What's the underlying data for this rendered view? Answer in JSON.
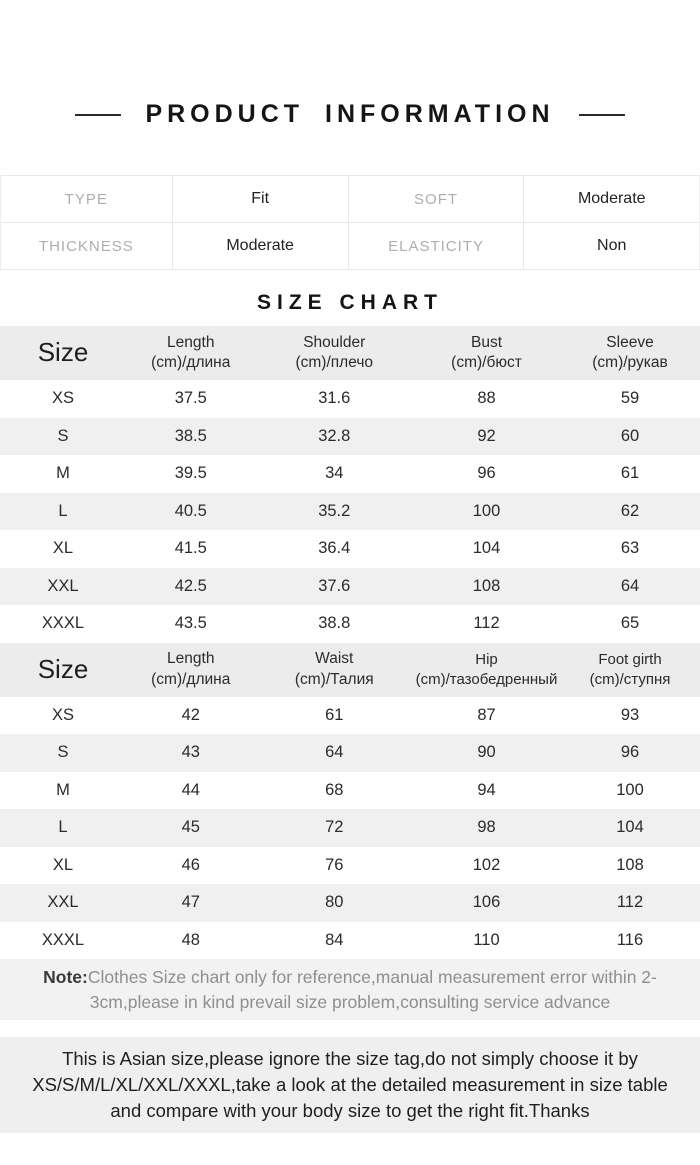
{
  "title": "PRODUCT INFORMATION",
  "info_table": {
    "rows": [
      {
        "label1": "TYPE",
        "value1": "Fit",
        "label2": "SOFT",
        "value2": "Moderate"
      },
      {
        "label1": "THICKNESS",
        "value1": "Moderate",
        "label2": "ELASTICITY",
        "value2": "Non"
      }
    ]
  },
  "size_chart": {
    "heading": "SIZE CHART",
    "tables": [
      {
        "headers": [
          {
            "top": "Size",
            "bottom": ""
          },
          {
            "top": "Length",
            "bottom": "(cm)/длина"
          },
          {
            "top": "Shoulder",
            "bottom": "(cm)/плечо"
          },
          {
            "top": "Bust",
            "bottom": "(cm)/бюст"
          },
          {
            "top": "Sleeve",
            "bottom": "(cm)/рукав"
          }
        ],
        "rows": [
          [
            "XS",
            "37.5",
            "31.6",
            "88",
            "59"
          ],
          [
            "S",
            "38.5",
            "32.8",
            "92",
            "60"
          ],
          [
            "M",
            "39.5",
            "34",
            "96",
            "61"
          ],
          [
            "L",
            "40.5",
            "35.2",
            "100",
            "62"
          ],
          [
            "XL",
            "41.5",
            "36.4",
            "104",
            "63"
          ],
          [
            "XXL",
            "42.5",
            "37.6",
            "108",
            "64"
          ],
          [
            "XXXL",
            "43.5",
            "38.8",
            "112",
            "65"
          ]
        ]
      },
      {
        "headers": [
          {
            "top": "Size",
            "bottom": ""
          },
          {
            "top": "Length",
            "bottom": "(cm)/длина"
          },
          {
            "top": "Waist",
            "bottom": "(cm)/Талия"
          },
          {
            "top": "Hip",
            "bottom": "(cm)/тазобедренный"
          },
          {
            "top": "Foot girth",
            "bottom": "(cm)/ступня"
          }
        ],
        "rows": [
          [
            "XS",
            "42",
            "61",
            "87",
            "93"
          ],
          [
            "S",
            "43",
            "64",
            "90",
            "96"
          ],
          [
            "M",
            "44",
            "68",
            "94",
            "100"
          ],
          [
            "L",
            "45",
            "72",
            "98",
            "104"
          ],
          [
            "XL",
            "46",
            "76",
            "102",
            "108"
          ],
          [
            "XXL",
            "47",
            "80",
            "106",
            "112"
          ],
          [
            "XXXL",
            "48",
            "84",
            "110",
            "116"
          ]
        ]
      }
    ]
  },
  "note": {
    "label": "Note:",
    "text": "Clothes Size chart only for reference,manual measurement error within 2-3cm,please in kind prevail size problem,consulting service advance"
  },
  "footer_box": {
    "text": "This is Asian size,please ignore the size tag,do not simply choose it by XS/S/M/L/XL/XXL/XXXL,take a look at the detailed measurement in size table and compare with your body size to get the right fit.Thanks"
  },
  "colors": {
    "table_header_bg": "#ececec",
    "row_alt_bg": "#f0f0f0",
    "note_bg": "#f2f2f2",
    "footer_box_bg": "#efefef",
    "label_gray": "#aeaeae",
    "text_dark": "#1a1a1a",
    "border": "#e8e8e8"
  }
}
